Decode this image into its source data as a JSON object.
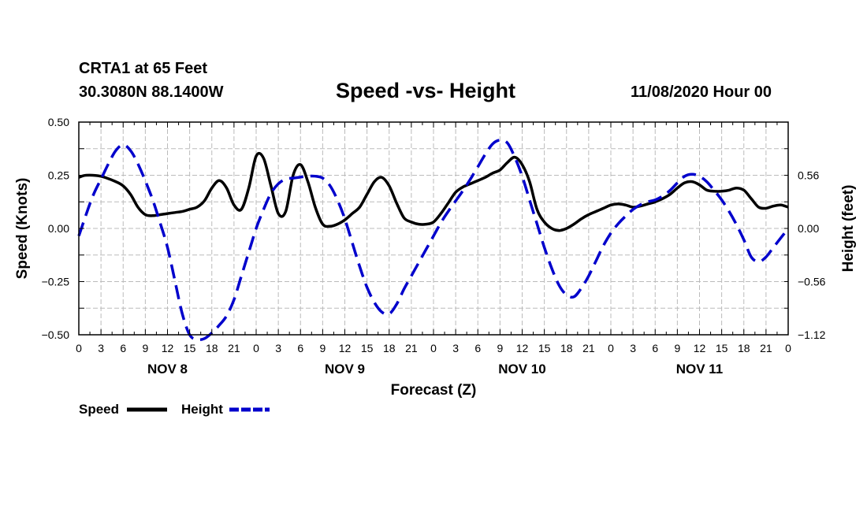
{
  "header": {
    "station": "CRTA1 at 65 Feet",
    "coords": "30.3080N 88.1400W",
    "title": "Speed -vs- Height",
    "date": "11/08/2020 Hour 00"
  },
  "colors": {
    "speed": "#000000",
    "height": "#0000cc",
    "grid": "#bbbbbb"
  },
  "chart_data": {
    "type": "line",
    "title": "Speed -vs- Height",
    "xlabel": "Forecast (Z)",
    "ylabel": "Speed (Knots)",
    "y2label": "Height (feet)",
    "xlim": [
      0,
      96
    ],
    "ylim": [
      -0.5,
      0.5
    ],
    "y2lim": [
      -1.12,
      1.12
    ],
    "grid": true,
    "x_ticks": [
      0,
      3,
      6,
      9,
      12,
      15,
      18,
      21,
      24,
      27,
      30,
      33,
      36,
      39,
      42,
      45,
      48,
      51,
      54,
      57,
      60,
      63,
      66,
      69,
      72,
      75,
      78,
      81,
      84,
      87,
      90,
      93,
      96
    ],
    "x_tick_labels": [
      "0",
      "3",
      "6",
      "9",
      "12",
      "15",
      "18",
      "21",
      "0",
      "3",
      "6",
      "9",
      "12",
      "15",
      "18",
      "21",
      "0",
      "3",
      "6",
      "9",
      "12",
      "15",
      "18",
      "21",
      "0",
      "3",
      "6",
      "9",
      "12",
      "15",
      "18",
      "21",
      "0"
    ],
    "day_labels": [
      {
        "x": 12,
        "label": "NOV 8"
      },
      {
        "x": 36,
        "label": "NOV 9"
      },
      {
        "x": 60,
        "label": "NOV 10"
      },
      {
        "x": 84,
        "label": "NOV 11"
      }
    ],
    "y_ticks": [
      0.5,
      0.25,
      0.0,
      -0.25,
      -0.5
    ],
    "y_tick_labels": [
      "0.50",
      "0.25",
      "0.00",
      "−0.25",
      "−0.50"
    ],
    "y2_ticks": [
      0.56,
      0.0,
      -0.56,
      -1.12
    ],
    "y2_tick_labels": [
      "0.56",
      "0.00",
      "−0.56",
      "−1.12"
    ],
    "legend": [
      {
        "name": "Speed",
        "style": "solid"
      },
      {
        "name": "Height",
        "style": "dashed"
      }
    ],
    "series": [
      {
        "name": "Speed",
        "axis": "left",
        "x": [
          0,
          1,
          3,
          5,
          6,
          7,
          8,
          9,
          10,
          11,
          12,
          13,
          14,
          15,
          16,
          17,
          18,
          19,
          20,
          21,
          22,
          23,
          24,
          25,
          26,
          27,
          28,
          29,
          30,
          31,
          32,
          33,
          34,
          35,
          36,
          37,
          38,
          39,
          40,
          41,
          42,
          43,
          44,
          45,
          46,
          47,
          48,
          49,
          50,
          51,
          52,
          53,
          54,
          55,
          56,
          57,
          58,
          59,
          60,
          61,
          62,
          63,
          64,
          65,
          66,
          67,
          68,
          69,
          70,
          71,
          72,
          73,
          74,
          75,
          76,
          77,
          78,
          79,
          80,
          81,
          82,
          83,
          84,
          85,
          86,
          87,
          88,
          89,
          90,
          91,
          92,
          93,
          94,
          95,
          96
        ],
        "values": [
          0.24,
          0.25,
          0.245,
          0.22,
          0.2,
          0.16,
          0.1,
          0.065,
          0.06,
          0.065,
          0.07,
          0.075,
          0.08,
          0.09,
          0.1,
          0.13,
          0.19,
          0.225,
          0.19,
          0.11,
          0.09,
          0.19,
          0.34,
          0.33,
          0.2,
          0.07,
          0.08,
          0.25,
          0.3,
          0.22,
          0.1,
          0.02,
          0.01,
          0.02,
          0.04,
          0.07,
          0.1,
          0.16,
          0.22,
          0.24,
          0.2,
          0.12,
          0.05,
          0.03,
          0.02,
          0.02,
          0.03,
          0.07,
          0.12,
          0.17,
          0.195,
          0.21,
          0.225,
          0.24,
          0.26,
          0.275,
          0.31,
          0.335,
          0.3,
          0.22,
          0.09,
          0.03,
          0.0,
          -0.01,
          0.0,
          0.02,
          0.045,
          0.065,
          0.08,
          0.095,
          0.11,
          0.115,
          0.11,
          0.1,
          0.105,
          0.115,
          0.125,
          0.14,
          0.16,
          0.19,
          0.215,
          0.22,
          0.205,
          0.18,
          0.175,
          0.175,
          0.18,
          0.19,
          0.18,
          0.14,
          0.1,
          0.095,
          0.105,
          0.11,
          0.1
        ]
      },
      {
        "name": "Height",
        "axis": "right",
        "x": [
          0,
          1,
          2,
          3,
          4,
          5,
          6,
          7,
          8,
          9,
          10,
          11,
          12,
          13,
          14,
          15,
          16,
          17,
          18,
          19,
          20,
          21,
          22,
          23,
          24,
          25,
          26,
          27,
          28,
          29,
          30,
          31,
          32,
          33,
          34,
          35,
          36,
          37,
          38,
          39,
          40,
          41,
          42,
          43,
          44,
          45,
          46,
          47,
          48,
          49,
          50,
          51,
          52,
          53,
          54,
          55,
          56,
          57,
          58,
          59,
          60,
          61,
          62,
          63,
          64,
          65,
          66,
          67,
          68,
          69,
          70,
          71,
          72,
          73,
          74,
          75,
          76,
          77,
          78,
          79,
          80,
          81,
          82,
          83,
          84,
          85,
          86,
          87,
          88,
          89,
          90,
          91,
          92,
          93,
          94,
          95,
          96
        ],
        "values": [
          -0.08,
          0.15,
          0.36,
          0.52,
          0.68,
          0.82,
          0.88,
          0.82,
          0.68,
          0.5,
          0.3,
          0.06,
          -0.2,
          -0.55,
          -0.9,
          -1.12,
          -1.17,
          -1.16,
          -1.1,
          -1.02,
          -0.92,
          -0.75,
          -0.5,
          -0.25,
          0.0,
          0.2,
          0.37,
          0.47,
          0.52,
          0.53,
          0.54,
          0.55,
          0.55,
          0.53,
          0.45,
          0.3,
          0.1,
          -0.15,
          -0.4,
          -0.62,
          -0.78,
          -0.88,
          -0.9,
          -0.8,
          -0.64,
          -0.5,
          -0.36,
          -0.22,
          -0.08,
          0.06,
          0.18,
          0.29,
          0.4,
          0.52,
          0.65,
          0.78,
          0.89,
          0.93,
          0.9,
          0.75,
          0.55,
          0.3,
          0.05,
          -0.2,
          -0.42,
          -0.6,
          -0.7,
          -0.72,
          -0.63,
          -0.5,
          -0.34,
          -0.18,
          -0.05,
          0.05,
          0.13,
          0.2,
          0.25,
          0.28,
          0.3,
          0.34,
          0.4,
          0.48,
          0.55,
          0.57,
          0.55,
          0.49,
          0.4,
          0.3,
          0.18,
          0.04,
          -0.12,
          -0.3,
          -0.35,
          -0.3,
          -0.2,
          -0.1,
          0.0
        ]
      }
    ]
  }
}
